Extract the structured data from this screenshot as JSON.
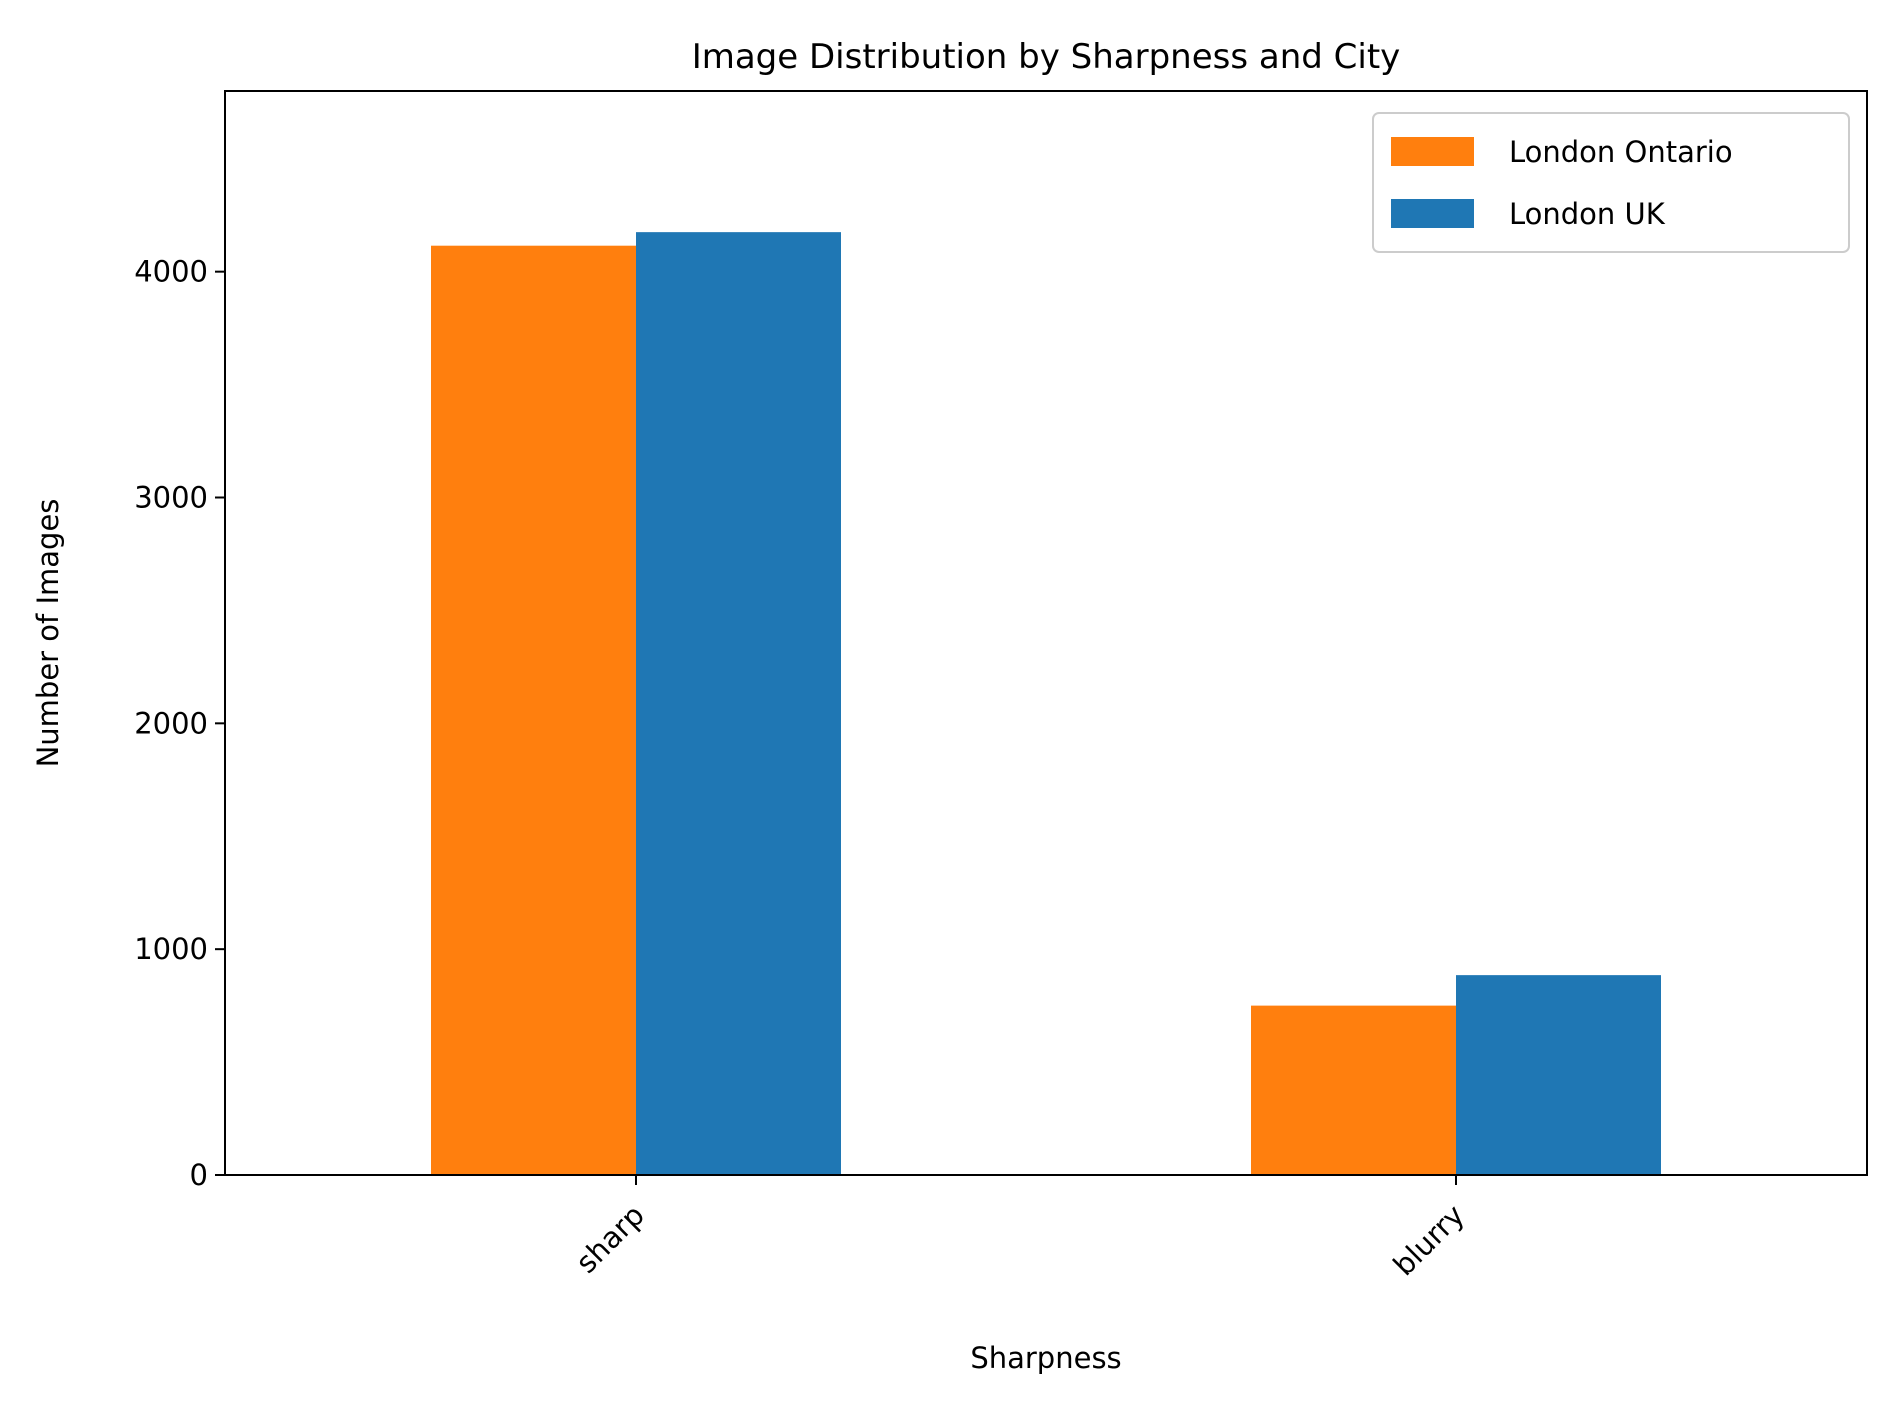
{
  "chart_data": {
    "type": "bar",
    "title": "Image Distribution by Sharpness and City",
    "xlabel": "Sharpness",
    "ylabel": "Number of Images",
    "categories": [
      "sharp",
      "blurry"
    ],
    "series": [
      {
        "name": "London Ontario",
        "values": [
          4115,
          750
        ],
        "color": "#ff7f0e"
      },
      {
        "name": "London UK",
        "values": [
          4175,
          885
        ],
        "color": "#1f77b4"
      }
    ],
    "ylim": [
      0,
      4800
    ],
    "yticks": [
      0,
      1000,
      2000,
      3000,
      4000
    ],
    "grid": false,
    "legend_position": "top-right",
    "xtick_rotation": 45
  }
}
